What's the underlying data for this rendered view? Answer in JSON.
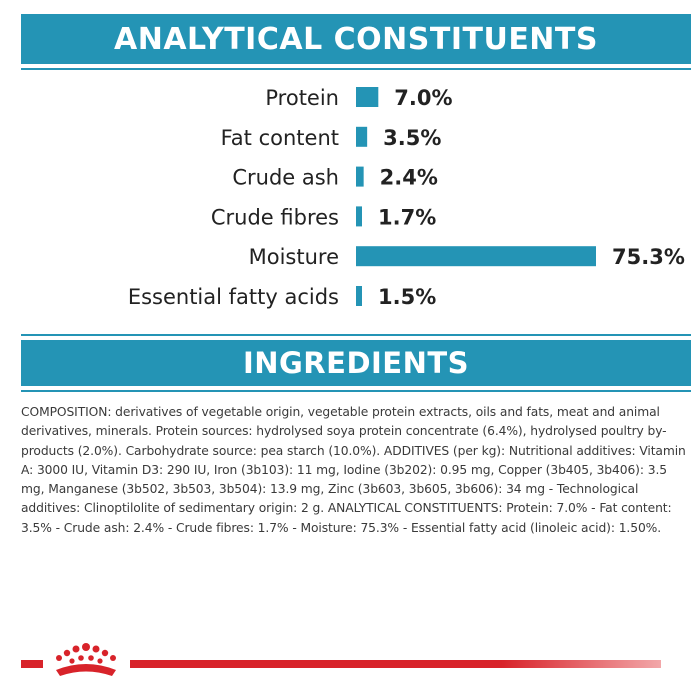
{
  "header": {
    "title": "ANALYTICAL CONSTITUENTS"
  },
  "ingredients_header": {
    "title": "INGREDIENTS"
  },
  "chart_data": {
    "type": "bar",
    "orientation": "horizontal",
    "categories": [
      "Protein",
      "Fat content",
      "Crude ash",
      "Crude fibres",
      "Moisture",
      "Essential fatty acids"
    ],
    "values": [
      7.0,
      3.5,
      2.4,
      1.7,
      75.3,
      1.5
    ],
    "value_labels": [
      "7.0%",
      "3.5%",
      "2.4%",
      "1.7%",
      "75.3%",
      "1.5%"
    ],
    "bar_color": "#2494b5"
  },
  "composition": {
    "text": "COMPOSITION: derivatives of vegetable origin, vegetable protein extracts, oils and fats, meat and animal derivatives, minerals. Protein sources: hydrolysed soya protein concentrate (6.4%), hydrolysed poultry by-products (2.0%). Carbohydrate source: pea starch (10.0%). ADDITIVES (per kg): Nutritional additives: Vitamin A: 3000 IU, Vitamin D3: 290 IU, Iron (3b103): 11 mg, Iodine (3b202): 0.95 mg, Copper (3b405, 3b406): 3.5 mg, Manganese (3b502, 3b503, 3b504): 13.9 mg, Zinc (3b603, 3b605, 3b606): 34 mg - Technological additives: Clinoptilolite of sedimentary origin: 2 g. ANALYTICAL CONSTITUENTS: Protein: 7.0% - Fat content: 3.5% - Crude ash: 2.4% - Crude fibres: 1.7% - Moisture: 75.3% - Essential fatty acid (linoleic acid): 1.50%."
  },
  "brand": {
    "logo_icon": "crown-icon",
    "accent_color": "#d8232a",
    "header_color": "#2494b5"
  }
}
